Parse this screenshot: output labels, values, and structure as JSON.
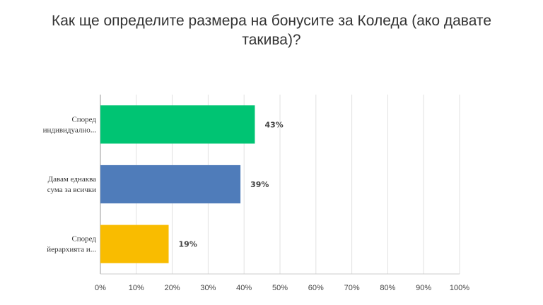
{
  "title_line1": "Как ще определите размера на бонусите за Коледа (ако давате",
  "title_line2": "такива)?",
  "chart_data": {
    "type": "bar",
    "orientation": "horizontal",
    "title": "Как ще определите размера на бонусите за Коледа (ако давате такива)?",
    "categories": [
      [
        "Според",
        "индивидуално..."
      ],
      [
        "Давам еднаква",
        "сума за всички"
      ],
      [
        "Според",
        "йерархията и..."
      ]
    ],
    "values": [
      43,
      39,
      19
    ],
    "value_labels": [
      "43%",
      "39%",
      "19%"
    ],
    "colors": [
      "#00C473",
      "#4F7CBA",
      "#F9BC00"
    ],
    "xlim": [
      0,
      100
    ],
    "ticks": [
      0,
      10,
      20,
      30,
      40,
      50,
      60,
      70,
      80,
      90,
      100
    ],
    "tick_labels": [
      "0%",
      "10%",
      "20%",
      "30%",
      "40%",
      "50%",
      "60%",
      "70%",
      "80%",
      "90%",
      "100%"
    ],
    "grid": true,
    "legend": "none"
  }
}
